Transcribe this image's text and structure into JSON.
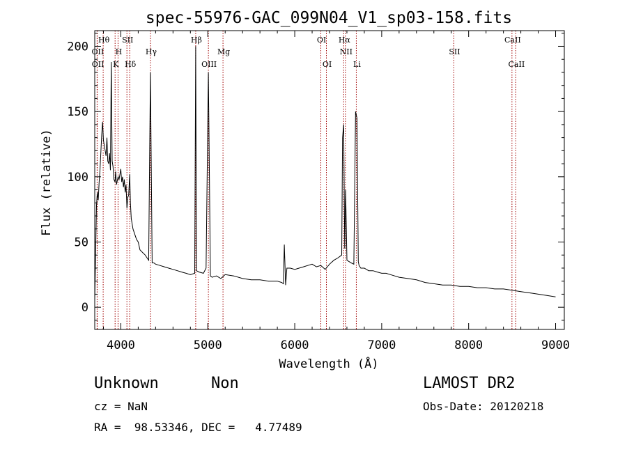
{
  "chart_data": {
    "type": "line",
    "title": "spec-55976-GAC_099N04_V1_sp03-158.fits",
    "xlabel": "Wavelength (Å)",
    "ylabel": "Flux (relative)",
    "xlim": [
      3700,
      9100
    ],
    "ylim": [
      -17,
      212
    ],
    "x_ticks": [
      4000,
      5000,
      6000,
      7000,
      8000,
      9000
    ],
    "y_ticks": [
      0,
      50,
      100,
      150,
      200
    ],
    "grid": false,
    "legend": "none",
    "series": [
      {
        "x": [
          3700,
          3710,
          3720,
          3730,
          3740,
          3750,
          3760,
          3770,
          3780,
          3790,
          3800,
          3810,
          3820,
          3830,
          3840,
          3850,
          3860,
          3870,
          3880,
          3890,
          3900,
          3910,
          3920,
          3933,
          3940,
          3950,
          3968,
          3980,
          3990,
          4000,
          4010,
          4020,
          4030,
          4040,
          4050,
          4060,
          4070,
          4080,
          4090,
          4102,
          4110,
          4120,
          4140,
          4160,
          4180,
          4200,
          4220,
          4250,
          4280,
          4300,
          4320,
          4340,
          4360,
          4380,
          4400,
          4450,
          4500,
          4550,
          4600,
          4650,
          4700,
          4750,
          4800,
          4850,
          4861,
          4870,
          4900,
          4950,
          4980,
          5007,
          5030,
          5050,
          5100,
          5150,
          5200,
          5300,
          5400,
          5500,
          5600,
          5700,
          5800,
          5850,
          5870,
          5880,
          5895,
          5910,
          5950,
          6000,
          6050,
          6100,
          6150,
          6200,
          6250,
          6300,
          6350,
          6400,
          6450,
          6500,
          6540,
          6550,
          6563,
          6575,
          6585,
          6600,
          6650,
          6680,
          6700,
          6716,
          6731,
          6740,
          6760,
          6800,
          6850,
          6900,
          6950,
          7000,
          7050,
          7100,
          7150,
          7200,
          7300,
          7400,
          7500,
          7600,
          7700,
          7800,
          7900,
          8000,
          8100,
          8200,
          8300,
          8400,
          8500,
          8600,
          8700,
          8800,
          8900,
          9000
        ],
        "y": [
          5,
          40,
          78,
          88,
          82,
          95,
          105,
          118,
          132,
          142,
          128,
          124,
          120,
          116,
          130,
          112,
          110,
          118,
          105,
          188,
          112,
          108,
          98,
          96,
          104,
          94,
          100,
          98,
          102,
          106,
          96,
          100,
          92,
          98,
          88,
          94,
          76,
          84,
          86,
          102,
          80,
          68,
          60,
          56,
          52,
          50,
          44,
          42,
          40,
          38,
          36,
          180,
          34,
          34,
          33,
          32,
          31,
          30,
          29,
          28,
          27,
          26,
          25,
          26,
          200,
          28,
          27,
          26,
          30,
          180,
          24,
          23,
          24,
          22,
          25,
          24,
          22,
          21,
          21,
          20,
          20,
          19,
          18,
          48,
          17,
          30,
          30,
          29,
          30,
          31,
          32,
          33,
          31,
          32,
          29,
          33,
          36,
          38,
          40,
          130,
          140,
          45,
          90,
          36,
          34,
          33,
          150,
          145,
          35,
          32,
          30,
          30,
          28,
          28,
          27,
          26,
          26,
          25,
          24,
          23,
          22,
          21,
          19,
          18,
          17,
          17,
          16,
          16,
          15,
          15,
          14,
          14,
          13,
          12,
          11,
          10,
          9,
          8
        ]
      }
    ],
    "annotations": [
      {
        "label": "Hθ",
        "x": 3797,
        "row": 1
      },
      {
        "label": "OII",
        "x": 3727,
        "row": 2
      },
      {
        "label": "OII",
        "x": 3729,
        "row": 3
      },
      {
        "label": "H",
        "x": 3968,
        "row": 2
      },
      {
        "label": "K",
        "x": 3934,
        "row": 3
      },
      {
        "label": "SII",
        "x": 4070,
        "row": 1
      },
      {
        "label": "Hδ",
        "x": 4102,
        "row": 3
      },
      {
        "label": "Hγ",
        "x": 4341,
        "row": 2
      },
      {
        "label": "Hβ",
        "x": 4861,
        "row": 1
      },
      {
        "label": "OIII",
        "x": 5007,
        "row": 3
      },
      {
        "label": "Mg",
        "x": 5175,
        "row": 2
      },
      {
        "label": "OI",
        "x": 6300,
        "row": 1
      },
      {
        "label": "OI",
        "x": 6364,
        "row": 3
      },
      {
        "label": "Hα",
        "x": 6563,
        "row": 1
      },
      {
        "label": "NII",
        "x": 6583,
        "row": 2
      },
      {
        "label": "Li",
        "x": 6708,
        "row": 3
      },
      {
        "label": "SII",
        "x": 7830,
        "row": 2
      },
      {
        "label": "CaII",
        "x": 8498,
        "row": 1
      },
      {
        "label": "CaII",
        "x": 8542,
        "row": 3
      }
    ],
    "line_markers": [
      3727,
      3729,
      3797,
      3934,
      3968,
      4070,
      4102,
      4341,
      4861,
      5007,
      5175,
      6300,
      6364,
      6563,
      6583,
      6708,
      7830,
      8498,
      8542
    ]
  },
  "info": {
    "object_class": "Unknown",
    "subclass": "Non",
    "survey": "LAMOST DR2",
    "cz": "cz = NaN",
    "obs_date": "Obs-Date: 20120218",
    "radec": "RA =  98.53346, DEC =   4.77489"
  }
}
